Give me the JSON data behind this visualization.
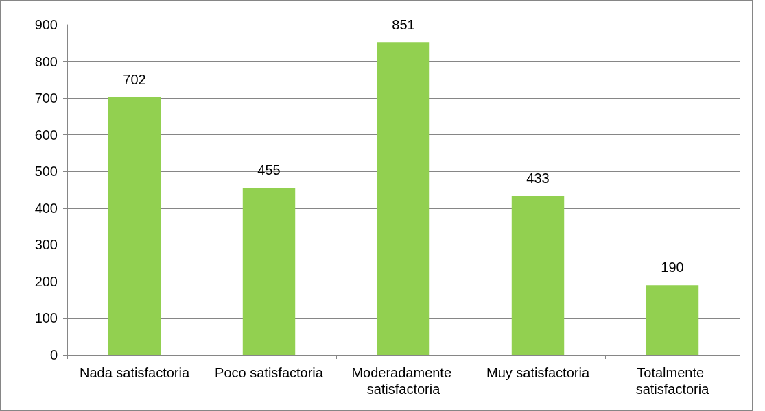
{
  "chart_data": {
    "type": "bar",
    "categories": [
      "Nada satisfactoria",
      "Poco satisfactoria",
      "Moderadamente satisfactoria",
      "Muy satisfactoria",
      "Totalmente satisfactoria"
    ],
    "values": [
      702,
      455,
      851,
      433,
      190
    ],
    "color": "#92d050",
    "ylim": [
      0,
      900
    ],
    "yticks": [
      0,
      100,
      200,
      300,
      400,
      500,
      600,
      700,
      800,
      900
    ],
    "grid": "y",
    "data_labels": true
  }
}
